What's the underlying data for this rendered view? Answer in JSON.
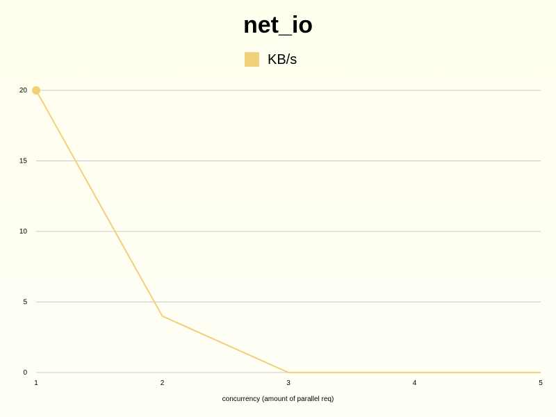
{
  "chart_data": {
    "type": "line",
    "title": "net_io",
    "xlabel": "concurrency (amount of parallel req)",
    "ylabel": "",
    "x": [
      1,
      2,
      3,
      4,
      5
    ],
    "xlim": [
      1,
      5
    ],
    "ylim": [
      0,
      20
    ],
    "y_ticks": [
      0,
      5,
      10,
      15,
      20
    ],
    "x_ticks": [
      1,
      2,
      3,
      4,
      5
    ],
    "grid": "horizontal",
    "legend_position": "top-center",
    "series": [
      {
        "name": "KB/s",
        "values": [
          20,
          4,
          0,
          0,
          0
        ],
        "color": "#f0d078"
      }
    ]
  },
  "colors": {
    "background": "#ffffee",
    "grid": "#c8c8c8",
    "text": "#000000"
  }
}
